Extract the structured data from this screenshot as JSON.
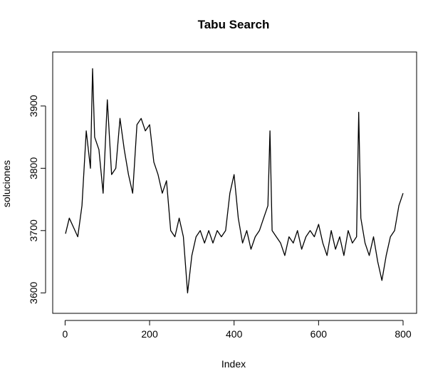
{
  "chart_data": {
    "type": "line",
    "title": "Tabu Search",
    "xlabel": "Index",
    "ylabel": "soluciones",
    "xlim": [
      1,
      800
    ],
    "ylim": [
      3590,
      3965
    ],
    "x_ticks": [
      0,
      200,
      400,
      600,
      800
    ],
    "y_ticks": [
      3600,
      3700,
      3800,
      3900
    ],
    "x_tick_labels": [
      "0",
      "200",
      "400",
      "600",
      "800"
    ],
    "y_tick_labels": [
      "3600",
      "3700",
      "3800",
      "3900"
    ],
    "grid": false,
    "line_color": "#000000",
    "series": [
      {
        "x": [
          1,
          10,
          20,
          30,
          40,
          50,
          60,
          65,
          70,
          80,
          90,
          100,
          110,
          120,
          130,
          140,
          150,
          160,
          170,
          180,
          190,
          200,
          210,
          220,
          230,
          240,
          250,
          260,
          270,
          280,
          290,
          300,
          310,
          320,
          330,
          340,
          350,
          360,
          370,
          380,
          390,
          400,
          410,
          420,
          430,
          440,
          450,
          460,
          470,
          480,
          485,
          490,
          500,
          510,
          520,
          530,
          540,
          550,
          560,
          570,
          580,
          590,
          600,
          610,
          620,
          630,
          640,
          650,
          660,
          670,
          680,
          690,
          695,
          700,
          710,
          720,
          730,
          740,
          750,
          760,
          770,
          780,
          790,
          800
        ],
        "values": [
          3695,
          3720,
          3705,
          3690,
          3740,
          3860,
          3800,
          3960,
          3850,
          3830,
          3760,
          3910,
          3790,
          3800,
          3880,
          3830,
          3790,
          3760,
          3870,
          3880,
          3860,
          3870,
          3810,
          3790,
          3760,
          3780,
          3700,
          3690,
          3720,
          3690,
          3600,
          3660,
          3690,
          3700,
          3680,
          3700,
          3680,
          3700,
          3690,
          3700,
          3760,
          3790,
          3720,
          3680,
          3700,
          3670,
          3690,
          3700,
          3720,
          3740,
          3860,
          3700,
          3690,
          3680,
          3660,
          3690,
          3680,
          3700,
          3670,
          3690,
          3700,
          3690,
          3710,
          3680,
          3660,
          3700,
          3670,
          3690,
          3660,
          3700,
          3680,
          3690,
          3890,
          3720,
          3680,
          3660,
          3690,
          3650,
          3620,
          3660,
          3690,
          3700,
          3740,
          3760
        ]
      }
    ]
  }
}
